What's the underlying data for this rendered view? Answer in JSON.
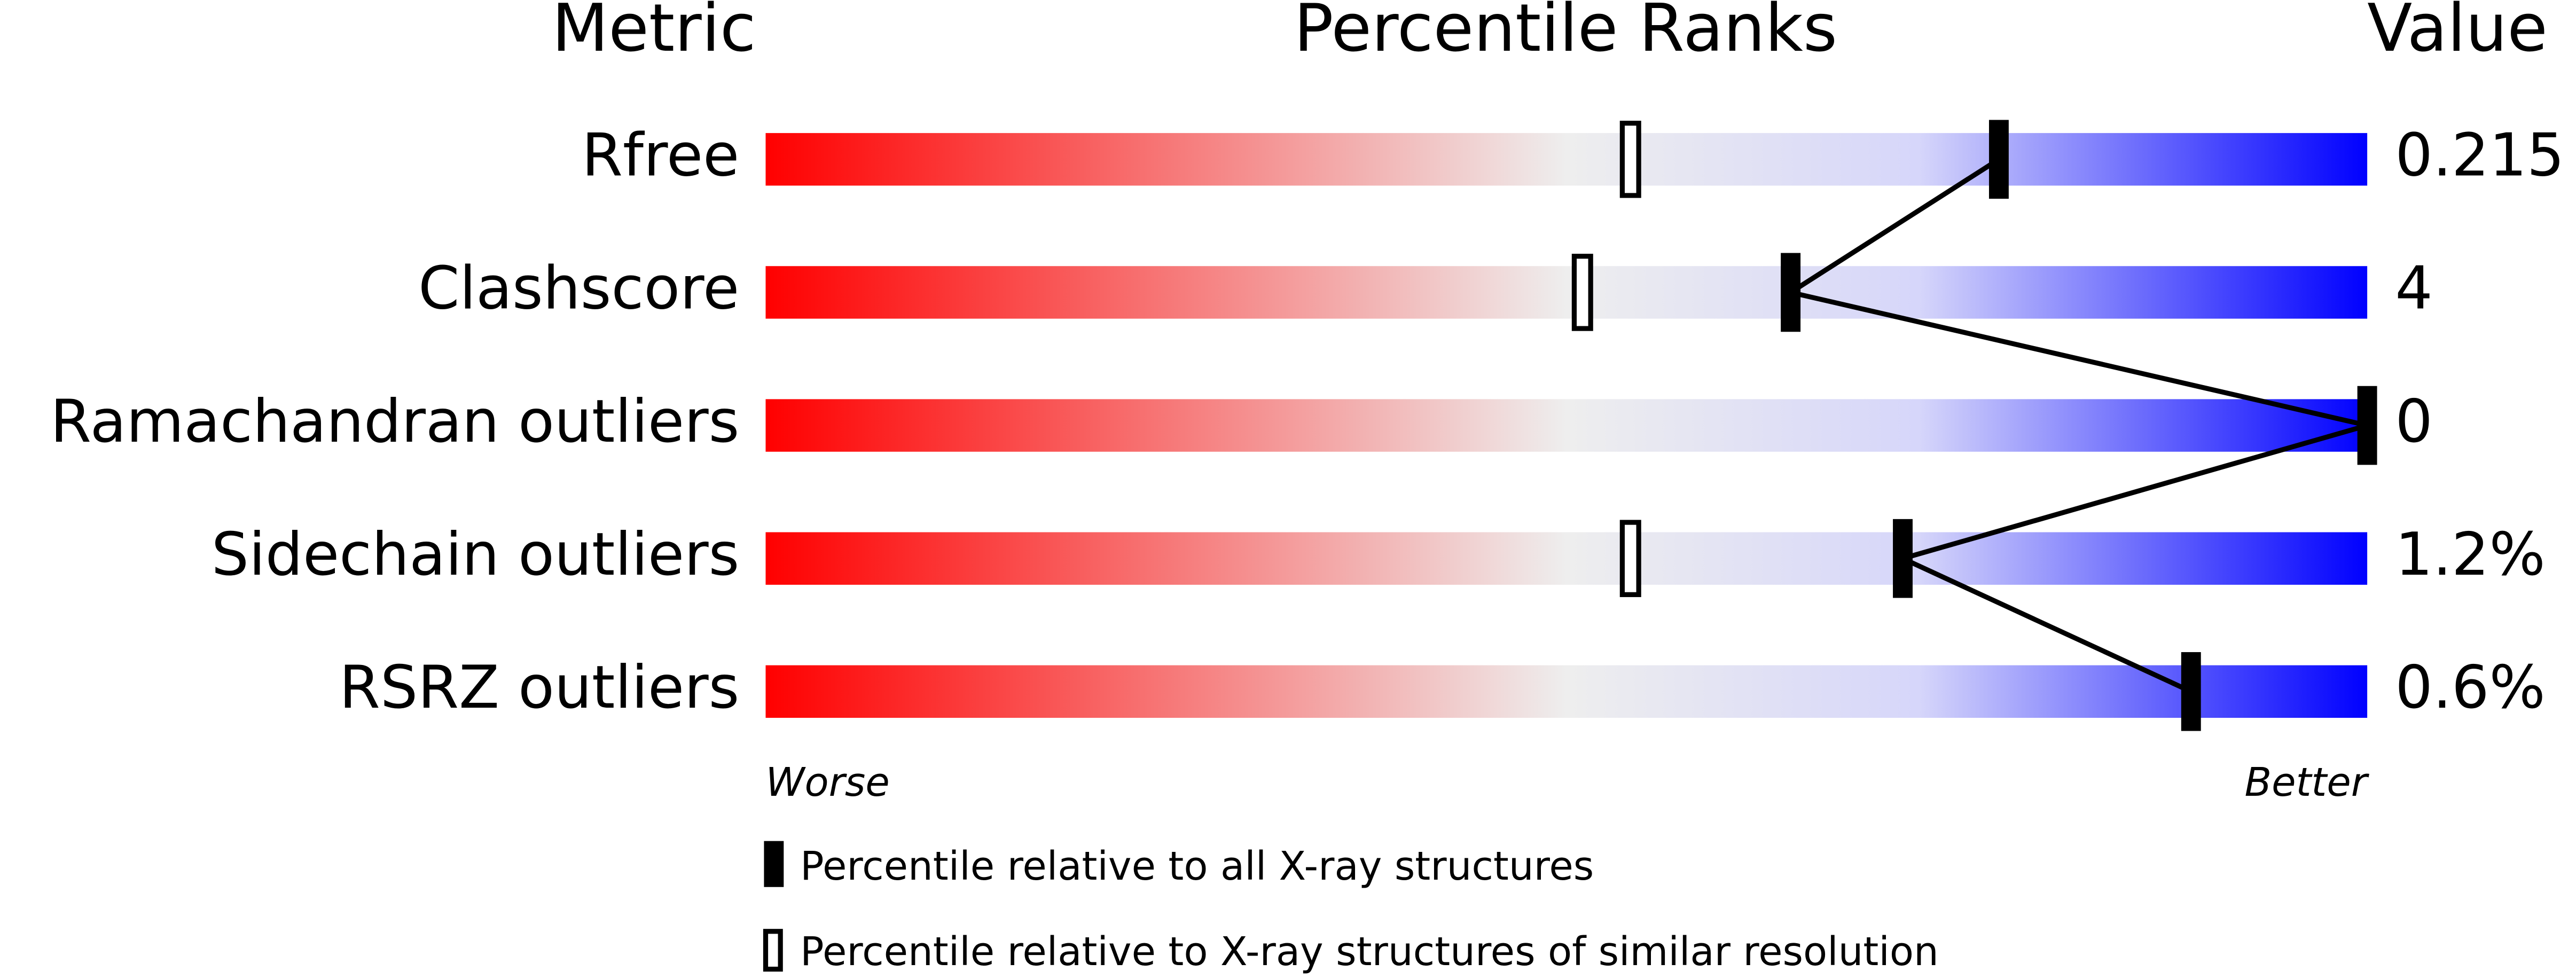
{
  "chart_data": {
    "type": "percentile",
    "headers": [
      "Metric",
      "Percentile Ranks",
      "Value"
    ],
    "categories": [
      "Rfree",
      "Clashscore",
      "Ramachandran outliers",
      "Sidechain outliers",
      "RSRZ outliers"
    ],
    "metric_values": [
      "0.215",
      "4",
      "0",
      "1.2%",
      "0.6%"
    ],
    "series": [
      {
        "name": "Percentile relative to all X-ray structures",
        "color": "#000000",
        "values": [
          77,
          64,
          100,
          71,
          89
        ]
      },
      {
        "name": "Percentile relative to X-ray structures of similar resolution",
        "color": "#000000",
        "values": [
          54,
          51,
          null,
          54,
          null
        ]
      }
    ],
    "xlim": [
      0,
      100
    ],
    "axis_labels": [
      "Worse",
      "Better"
    ],
    "colors": [
      "#ff0000",
      "#eeeeee",
      "#d6d6fa",
      "#0000ff"
    ]
  }
}
